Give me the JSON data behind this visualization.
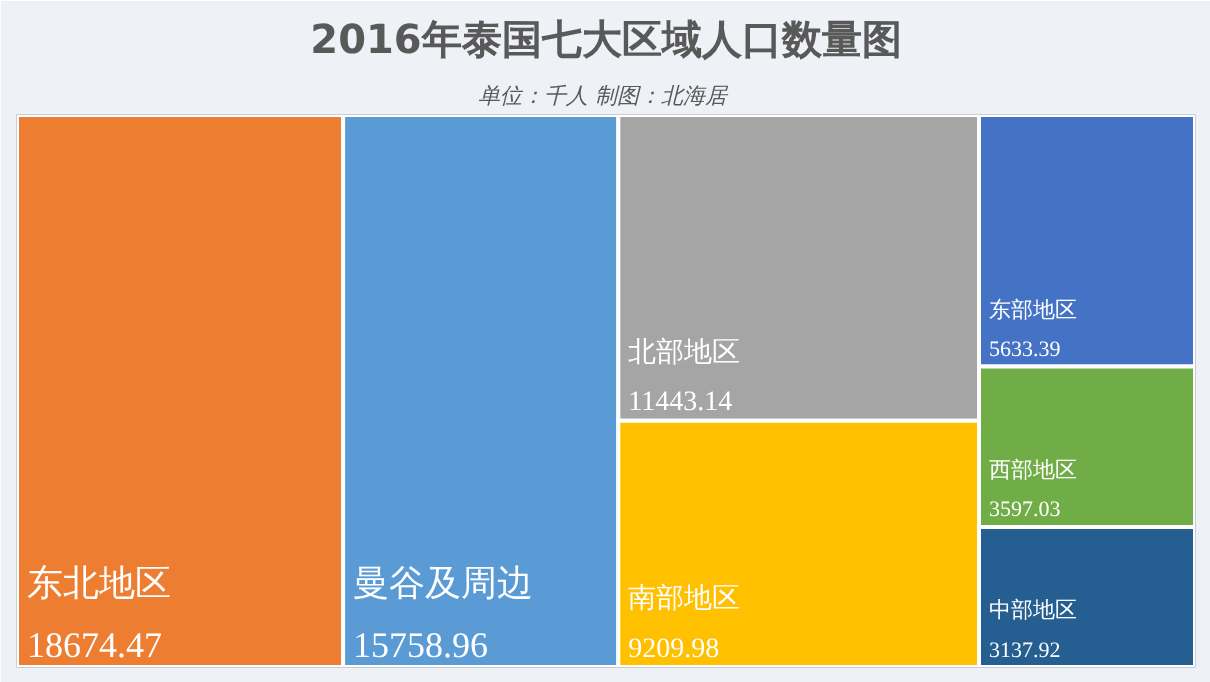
{
  "chart_data": {
    "type": "other",
    "title": "2016年泰国七大区域人口数量图",
    "subtitle": "单位：千人  制图：北海居",
    "categories": [
      "东北地区",
      "曼谷及周边",
      "北部地区",
      "南部地区",
      "东部地区",
      "西部地区",
      "中部地区"
    ],
    "values": [
      18674.47,
      15758.96,
      11443.14,
      9209.98,
      5633.39,
      3597.03,
      3137.92
    ],
    "colors": [
      "#ed7d31",
      "#5b9bd5",
      "#a5a5a5",
      "#ffc000",
      "#4472c4",
      "#70ad47",
      "#255e91"
    ],
    "data_labels": true
  }
}
